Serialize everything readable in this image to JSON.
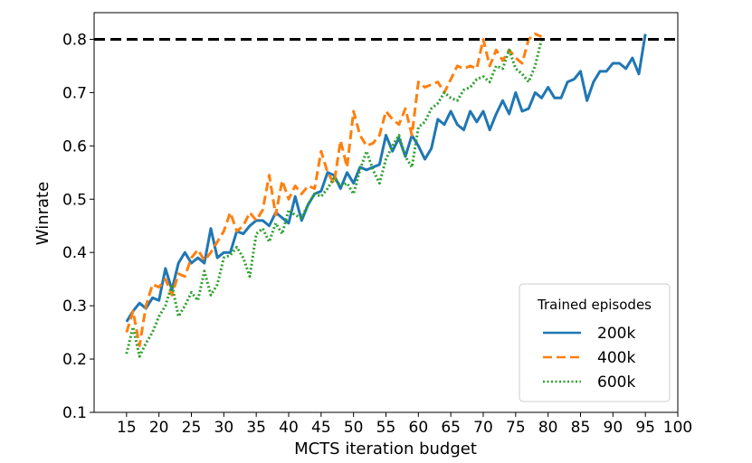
{
  "chart_data": {
    "type": "line",
    "xlabel": "MCTS iteration budget",
    "ylabel": "Winrate",
    "xlim": [
      10,
      100
    ],
    "ylim": [
      0.1,
      0.85
    ],
    "x_ticks": [
      15,
      20,
      25,
      30,
      35,
      40,
      45,
      50,
      55,
      60,
      65,
      70,
      75,
      80,
      85,
      90,
      95,
      100
    ],
    "y_ticks": [
      0.1,
      0.2,
      0.3,
      0.4,
      0.5,
      0.6,
      0.7,
      0.8
    ],
    "grid": false,
    "legend": {
      "title": "Trained episodes",
      "placement": "bottom-right"
    },
    "reference_line": {
      "y": 0.8,
      "style": "dashed",
      "color": "#000000"
    },
    "series": [
      {
        "name": "200k",
        "color": "#1f77b4",
        "style": "solid",
        "x": [
          15,
          16,
          17,
          18,
          19,
          20,
          21,
          22,
          23,
          24,
          25,
          26,
          27,
          28,
          29,
          30,
          31,
          32,
          33,
          34,
          35,
          36,
          37,
          38,
          39,
          40,
          41,
          42,
          43,
          44,
          45,
          46,
          47,
          48,
          49,
          50,
          51,
          52,
          53,
          54,
          55,
          56,
          57,
          58,
          59,
          60,
          61,
          62,
          63,
          64,
          65,
          66,
          67,
          68,
          69,
          70,
          71,
          72,
          73,
          74,
          75,
          76,
          77,
          78,
          79,
          80,
          81,
          82,
          83,
          84,
          85,
          86,
          87,
          88,
          89,
          90,
          91,
          92,
          93,
          94,
          95
        ],
        "values": [
          0.27,
          0.29,
          0.305,
          0.295,
          0.315,
          0.31,
          0.37,
          0.33,
          0.38,
          0.4,
          0.38,
          0.39,
          0.38,
          0.445,
          0.39,
          0.4,
          0.4,
          0.44,
          0.435,
          0.45,
          0.46,
          0.46,
          0.45,
          0.475,
          0.465,
          0.455,
          0.505,
          0.46,
          0.49,
          0.51,
          0.515,
          0.55,
          0.545,
          0.52,
          0.55,
          0.53,
          0.56,
          0.555,
          0.56,
          0.565,
          0.62,
          0.59,
          0.615,
          0.58,
          0.62,
          0.6,
          0.575,
          0.595,
          0.65,
          0.64,
          0.665,
          0.64,
          0.63,
          0.665,
          0.645,
          0.665,
          0.63,
          0.66,
          0.685,
          0.66,
          0.7,
          0.665,
          0.67,
          0.7,
          0.69,
          0.71,
          0.69,
          0.69,
          0.72,
          0.725,
          0.74,
          0.685,
          0.72,
          0.74,
          0.74,
          0.755,
          0.755,
          0.745,
          0.765,
          0.735,
          0.81
        ]
      },
      {
        "name": "400k",
        "color": "#ff7f0e",
        "style": "dashed",
        "x": [
          15,
          16,
          17,
          18,
          19,
          20,
          21,
          22,
          23,
          24,
          25,
          26,
          27,
          28,
          29,
          30,
          31,
          32,
          33,
          34,
          35,
          36,
          37,
          38,
          39,
          40,
          41,
          42,
          43,
          44,
          45,
          46,
          47,
          48,
          49,
          50,
          51,
          52,
          53,
          54,
          55,
          56,
          57,
          58,
          59,
          60,
          61,
          62,
          63,
          64,
          65,
          66,
          67,
          68,
          69,
          70,
          71,
          72,
          73,
          74,
          75,
          76,
          77,
          78,
          79
        ],
        "values": [
          0.25,
          0.29,
          0.225,
          0.3,
          0.34,
          0.335,
          0.35,
          0.32,
          0.36,
          0.355,
          0.39,
          0.405,
          0.385,
          0.4,
          0.42,
          0.44,
          0.475,
          0.44,
          0.45,
          0.475,
          0.46,
          0.48,
          0.545,
          0.47,
          0.535,
          0.5,
          0.525,
          0.51,
          0.525,
          0.52,
          0.59,
          0.55,
          0.53,
          0.61,
          0.56,
          0.665,
          0.62,
          0.6,
          0.605,
          0.62,
          0.665,
          0.65,
          0.64,
          0.67,
          0.62,
          0.72,
          0.71,
          0.715,
          0.72,
          0.7,
          0.725,
          0.75,
          0.745,
          0.75,
          0.745,
          0.8,
          0.75,
          0.78,
          0.76,
          0.78,
          0.765,
          0.755,
          0.8,
          0.81,
          0.805
        ]
      },
      {
        "name": "600k",
        "color": "#2ca02c",
        "style": "dotted",
        "x": [
          15,
          16,
          17,
          18,
          19,
          20,
          21,
          22,
          23,
          24,
          25,
          26,
          27,
          28,
          29,
          30,
          31,
          32,
          33,
          34,
          35,
          36,
          37,
          38,
          39,
          40,
          41,
          42,
          43,
          44,
          45,
          46,
          47,
          48,
          49,
          50,
          51,
          52,
          53,
          54,
          55,
          56,
          57,
          58,
          59,
          60,
          61,
          62,
          63,
          64,
          65,
          66,
          67,
          68,
          69,
          70,
          71,
          72,
          73,
          74,
          75,
          76,
          77,
          78,
          79
        ],
        "values": [
          0.21,
          0.26,
          0.205,
          0.23,
          0.25,
          0.28,
          0.3,
          0.34,
          0.28,
          0.3,
          0.325,
          0.31,
          0.365,
          0.32,
          0.34,
          0.39,
          0.395,
          0.41,
          0.39,
          0.355,
          0.435,
          0.445,
          0.42,
          0.455,
          0.435,
          0.48,
          0.47,
          0.465,
          0.49,
          0.51,
          0.505,
          0.52,
          0.54,
          0.525,
          0.53,
          0.51,
          0.555,
          0.59,
          0.555,
          0.53,
          0.575,
          0.6,
          0.62,
          0.58,
          0.56,
          0.635,
          0.645,
          0.67,
          0.68,
          0.7,
          0.69,
          0.685,
          0.705,
          0.71,
          0.725,
          0.73,
          0.72,
          0.75,
          0.745,
          0.78,
          0.745,
          0.735,
          0.72,
          0.75,
          0.8
        ]
      }
    ]
  }
}
